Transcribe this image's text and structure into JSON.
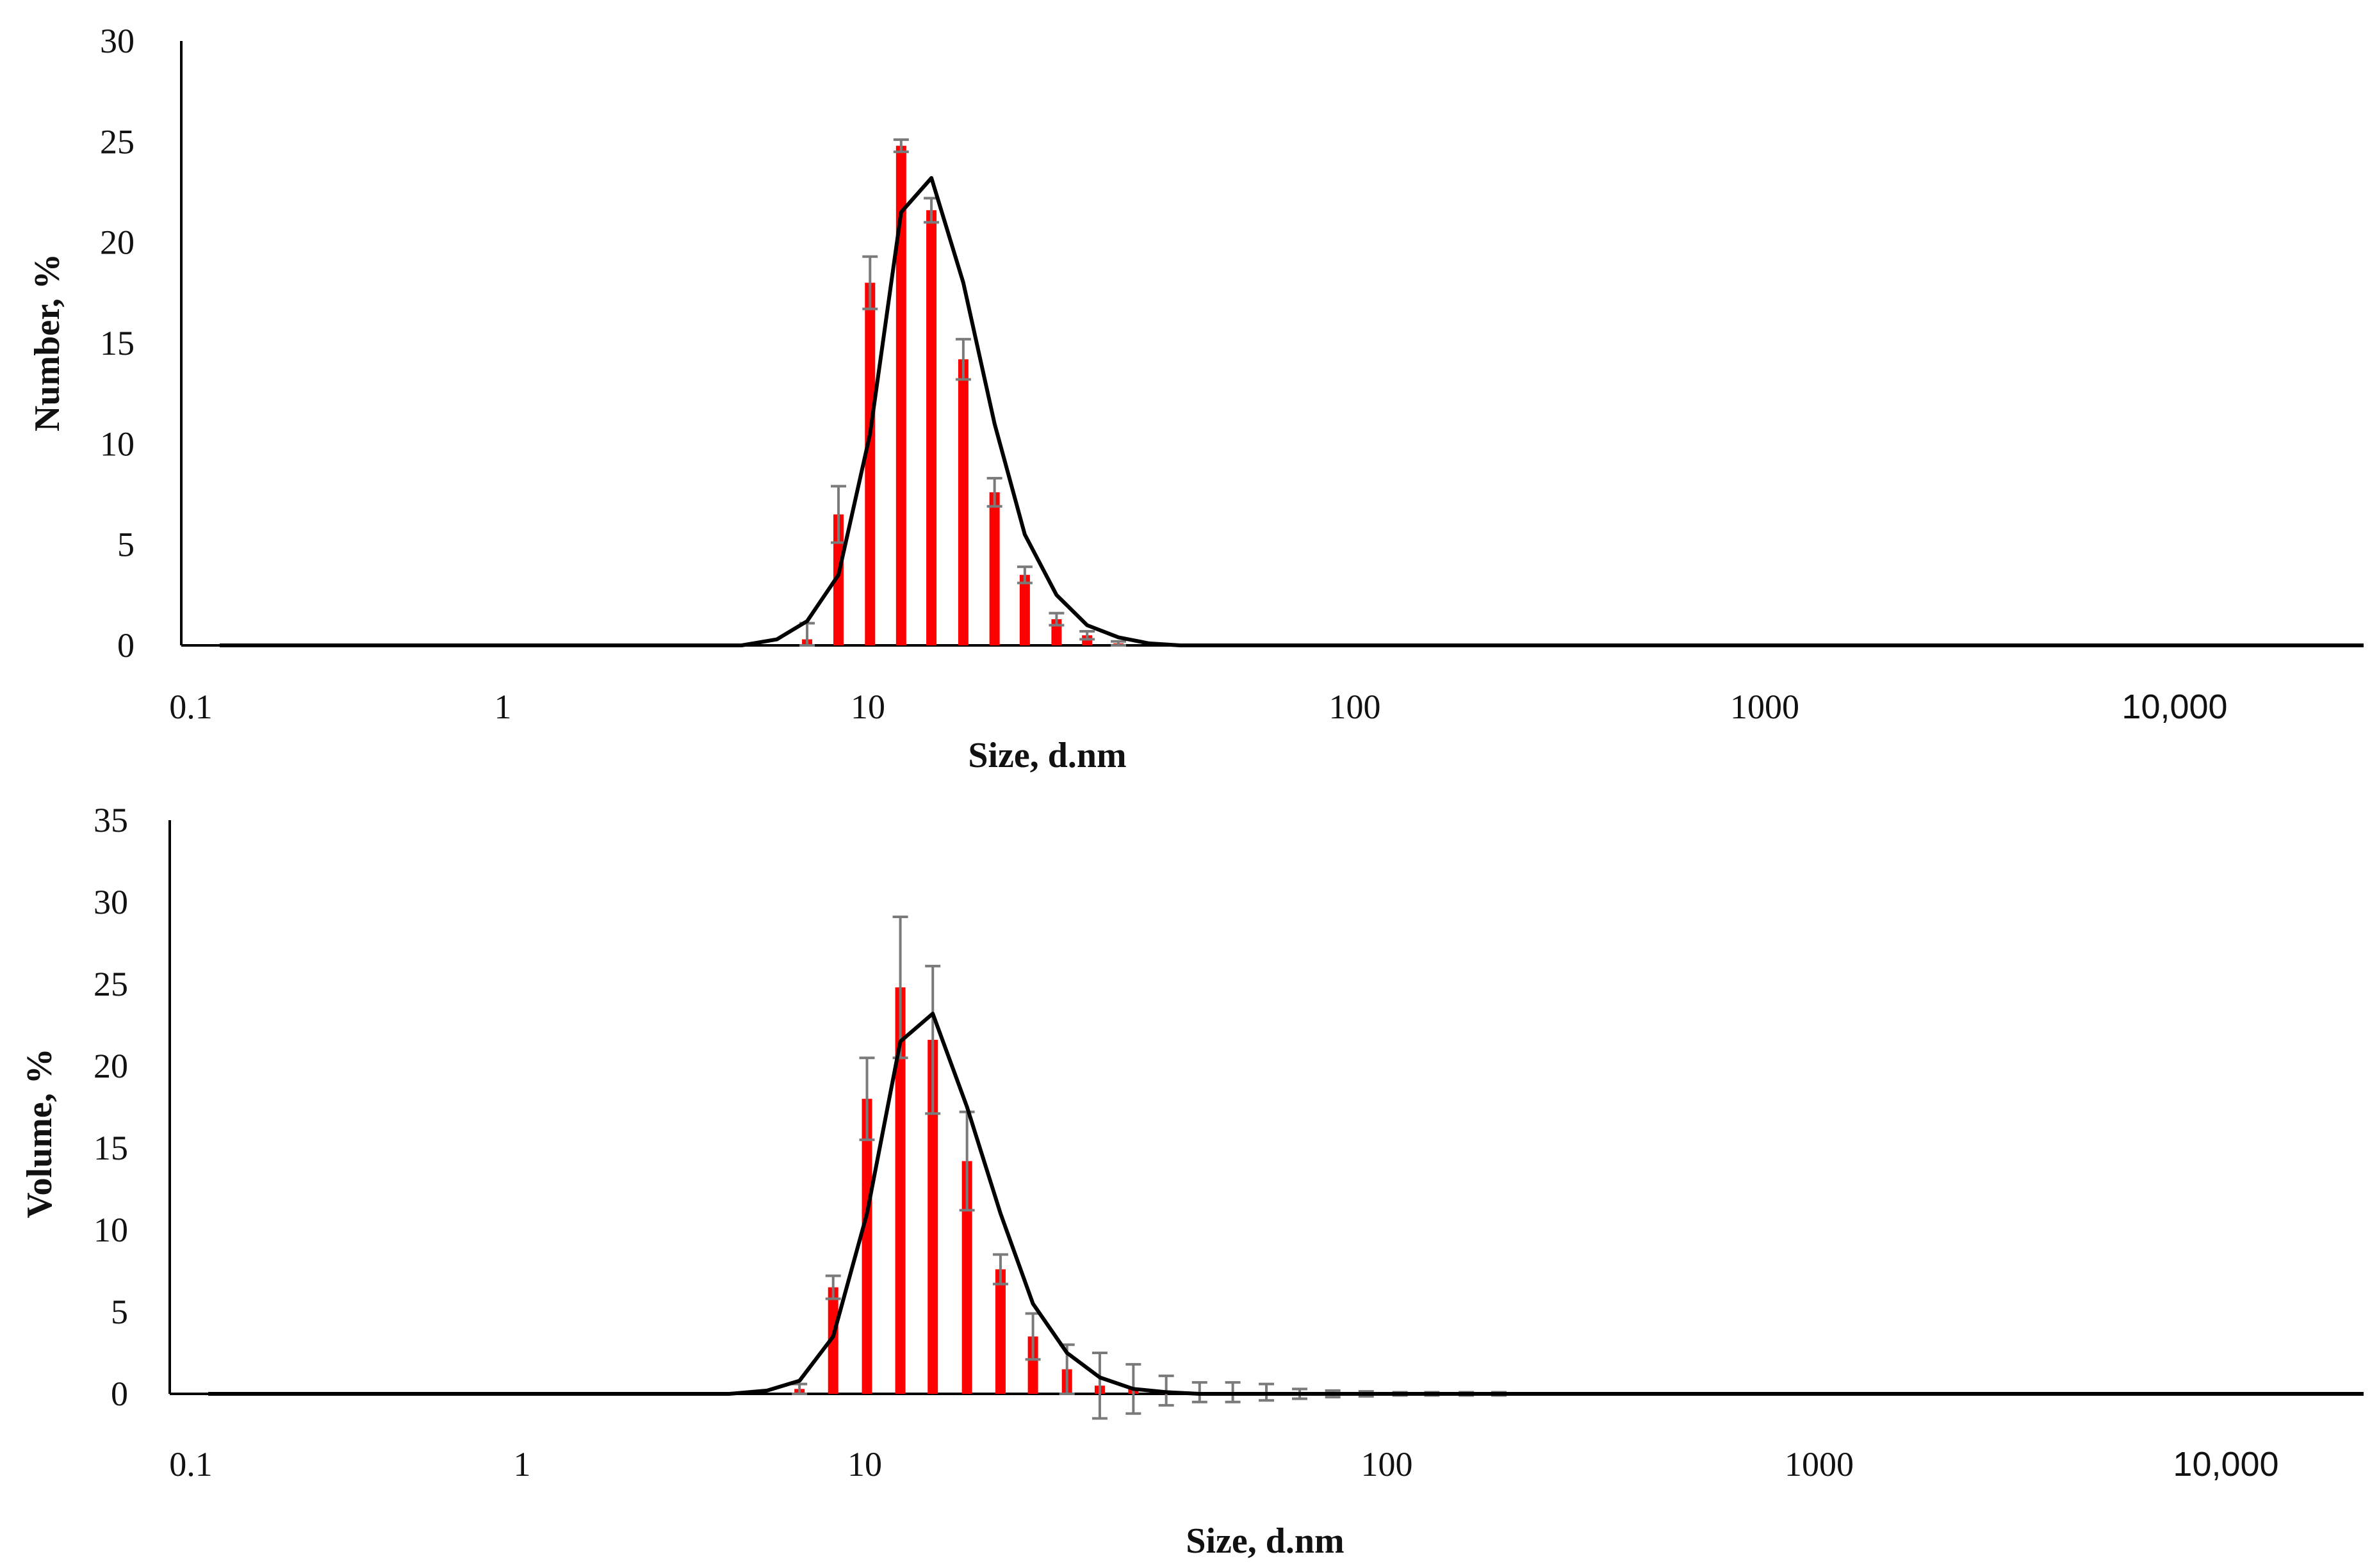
{
  "chart_data": [
    {
      "type": "bar",
      "xlabel": "Size, d.nm",
      "ylabel": "Number, %",
      "x_scale": "log",
      "xlim": [
        0.1,
        20000
      ],
      "ylim": [
        0,
        30
      ],
      "y_ticks": [
        "0",
        "5",
        "10",
        "15",
        "20",
        "25",
        "30"
      ],
      "x_ticks": [
        {
          "value": 0.1,
          "label": "0.1"
        },
        {
          "value": 1,
          "label": "1"
        },
        {
          "value": 10,
          "label": "10"
        },
        {
          "value": 100,
          "label": "100"
        },
        {
          "value": 1000,
          "label": "1000"
        },
        {
          "value": 10000,
          "label": "10,000"
        }
      ],
      "bars": [
        {
          "x": 7.5,
          "y": 0.3,
          "err": 0.8
        },
        {
          "x": 8.7,
          "y": 6.5,
          "err": 1.4
        },
        {
          "x": 10.1,
          "y": 18.0,
          "err": 1.3
        },
        {
          "x": 11.7,
          "y": 24.8,
          "err": 0.3
        },
        {
          "x": 13.5,
          "y": 21.6,
          "err": 0.6
        },
        {
          "x": 15.7,
          "y": 14.2,
          "err": 1.0
        },
        {
          "x": 18.2,
          "y": 7.6,
          "err": 0.7
        },
        {
          "x": 21.0,
          "y": 3.5,
          "err": 0.4
        },
        {
          "x": 24.4,
          "y": 1.3,
          "err": 0.3
        },
        {
          "x": 28.2,
          "y": 0.5,
          "err": 0.2
        },
        {
          "x": 32.7,
          "y": 0.1,
          "err": 0.1
        }
      ],
      "fit_line": {
        "x": [
          0.12,
          5.5,
          6.5,
          7.5,
          8.7,
          10.1,
          11.7,
          13.5,
          15.7,
          18.2,
          21.0,
          24.4,
          28.2,
          32.7,
          37.8,
          43.8,
          50.7,
          20000
        ],
        "y": [
          0,
          0,
          0.3,
          1.2,
          3.5,
          10.5,
          21.5,
          23.2,
          18.0,
          11.0,
          5.5,
          2.5,
          1.0,
          0.4,
          0.1,
          0.0,
          0.0,
          0
        ]
      }
    },
    {
      "type": "bar",
      "xlabel": "Size, d.nm",
      "ylabel": "Volume, %",
      "x_scale": "log",
      "xlim": [
        0.1,
        20000
      ],
      "ylim": [
        0,
        35
      ],
      "y_ticks": [
        "0",
        "5",
        "10",
        "15",
        "20",
        "25",
        "30",
        "35"
      ],
      "x_ticks": [
        {
          "value": 0.1,
          "label": "0.1"
        },
        {
          "value": 1,
          "label": "1"
        },
        {
          "value": 10,
          "label": "10"
        },
        {
          "value": 100,
          "label": "100"
        },
        {
          "value": 1000,
          "label": "1000"
        },
        {
          "value": 10000,
          "label": "10,000"
        }
      ],
      "bars": [
        {
          "x": 7.5,
          "y": 0.3,
          "err": 0.3
        },
        {
          "x": 8.7,
          "y": 6.5,
          "err": 0.7
        },
        {
          "x": 10.1,
          "y": 18.0,
          "err": 2.5
        },
        {
          "x": 11.7,
          "y": 24.8,
          "err": 4.3
        },
        {
          "x": 13.5,
          "y": 21.6,
          "err": 4.5
        },
        {
          "x": 15.7,
          "y": 14.2,
          "err": 3.0
        },
        {
          "x": 18.2,
          "y": 7.6,
          "err": 0.9
        },
        {
          "x": 21.0,
          "y": 3.5,
          "err": 1.4
        },
        {
          "x": 24.4,
          "y": 1.5,
          "err": 1.5
        },
        {
          "x": 28.2,
          "y": 0.5,
          "err": 2.0
        },
        {
          "x": 32.7,
          "y": 0.3,
          "err": 1.5
        },
        {
          "x": 37.8,
          "y": 0.2,
          "err": 0.9
        },
        {
          "x": 43.8,
          "y": 0.1,
          "err": 0.6
        },
        {
          "x": 50.7,
          "y": 0.1,
          "err": 0.6
        },
        {
          "x": 58.8,
          "y": 0.1,
          "err": 0.5
        },
        {
          "x": 68.1,
          "y": 0.0,
          "err": 0.3
        },
        {
          "x": 78.8,
          "y": 0.0,
          "err": 0.2
        },
        {
          "x": 91.3,
          "y": 0.0,
          "err": 0.15
        },
        {
          "x": 106,
          "y": 0.0,
          "err": 0.1
        },
        {
          "x": 122,
          "y": 0.0,
          "err": 0.1
        },
        {
          "x": 142,
          "y": 0.0,
          "err": 0.1
        },
        {
          "x": 164,
          "y": 0.0,
          "err": 0.1
        }
      ],
      "fit_line": {
        "x": [
          0.12,
          5.5,
          6.5,
          7.5,
          8.7,
          10.1,
          11.7,
          13.5,
          15.7,
          18.2,
          21.0,
          24.4,
          28.2,
          32.7,
          37.8,
          43.8,
          50.7,
          20000
        ],
        "y": [
          0,
          0,
          0.2,
          0.8,
          3.5,
          11.0,
          21.5,
          23.2,
          17.5,
          11.0,
          5.5,
          2.5,
          1.0,
          0.3,
          0.1,
          0.0,
          0.0,
          0
        ]
      }
    }
  ]
}
